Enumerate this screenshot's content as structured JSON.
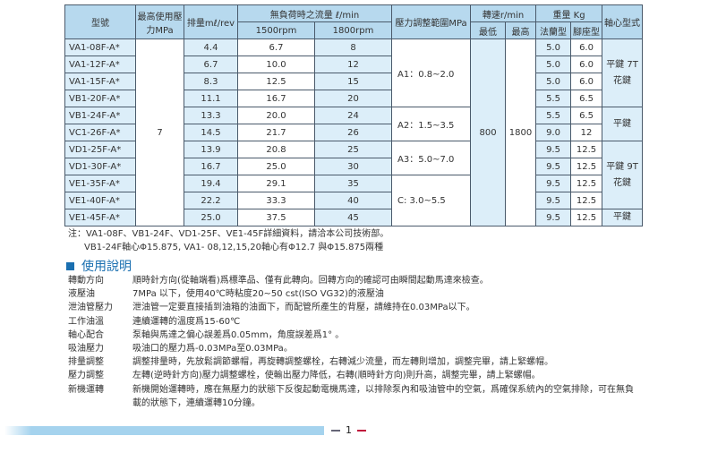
{
  "table": {
    "headers": {
      "model": "型號",
      "max_pressure": "最高使用壓力MPa",
      "displacement": "排量mℓ/rev",
      "flow": "無負荷時之流量 ℓ/min",
      "flow_1500": "1500rpm",
      "flow_1800": "1800rpm",
      "pressure_range": "壓力調整範圍MPa",
      "speed": "轉速r/min",
      "speed_min": "最低",
      "speed_max": "最高",
      "weight": "重量 Kg",
      "weight_flange": "法蘭型",
      "weight_foot": "腳座型",
      "shaft": "軸心型式"
    },
    "max_pressure": "7",
    "speed_min": "800",
    "speed_max": "1800",
    "pressure_ranges": [
      "A1：0.8~2.0",
      "A2：1.5~3.5",
      "A3：5.0~7.0",
      "C:   3.0~5.5"
    ],
    "shaft_types": [
      "平鍵 7T 花鍵",
      "平鍵",
      "平鍵 9T 花鍵",
      "平鍵"
    ],
    "rows": [
      [
        "VA1-08F-A*",
        "4.4",
        "6.7",
        "8",
        "5.0",
        "6.0"
      ],
      [
        "VA1-12F-A*",
        "6.7",
        "10.0",
        "12",
        "5.0",
        "6.0"
      ],
      [
        "VA1-15F-A*",
        "8.3",
        "12.5",
        "15",
        "5.0",
        "6.0"
      ],
      [
        "VB1-20F-A*",
        "11.1",
        "16.7",
        "20",
        "5.5",
        "6.5"
      ],
      [
        "VB1-24F-A*",
        "13.3",
        "20.0",
        "24",
        "5.5",
        "6.5"
      ],
      [
        "VC1-26F-A*",
        "14.5",
        "21.7",
        "26",
        "9.0",
        "12"
      ],
      [
        "VD1-25F-A*",
        "13.9",
        "20.8",
        "25",
        "9.5",
        "12.5"
      ],
      [
        "VD1-30F-A*",
        "16.7",
        "25.0",
        "30",
        "9.5",
        "12.5"
      ],
      [
        "VE1-35F-A*",
        "19.4",
        "29.1",
        "35",
        "9.5",
        "12.5"
      ],
      [
        "VE1-40F-A*",
        "22.2",
        "33.3",
        "40",
        "9.5",
        "12.5"
      ],
      [
        "VE1-45F-A*",
        "25.0",
        "37.5",
        "45",
        "9.5",
        "12.5"
      ]
    ]
  },
  "notes": [
    "注：VA1-08F、VB1-24F、VD1-25F、VE1-45F詳細資料，請洽本公司技術部。",
    "VB1-24F軸心Φ15.875, VA1- 08,12,15,20軸心有Φ12.7 與Φ15.875兩種"
  ],
  "section_title": "使用說明",
  "usage": [
    {
      "k": "轉動方向",
      "v": "順時針方向(從軸端看)爲標準品、僅有此轉向。回轉方向的確認可由瞬間起動馬達來檢查。"
    },
    {
      "k": "液壓油",
      "v": "7MPa 以下，使用40℃時粘度20~50 cst(ISO VG32)的液壓油"
    },
    {
      "k": "泄油管壓力",
      "v": "泄油管一定要直接插到油箱的油面下，而配管所產生的背壓，請維持在0.03MPa以下。"
    },
    {
      "k": "工作油溫",
      "v": "連續運轉的溫度爲15-60℃"
    },
    {
      "k": "軸心配合",
      "v": "泵軸與馬達之偏心誤差爲0.05mm，角度誤差爲1°  。"
    },
    {
      "k": "吸油壓力",
      "v": "吸油口的壓力爲-0.03MPa至0.03MPa。"
    },
    {
      "k": "排量調整",
      "v": "調整排量時，先放鬆調節螺帽，再旋轉調整螺栓，右轉減少流量，而左轉則增加，調整完畢，請上緊螺帽。"
    },
    {
      "k": "壓力調整",
      "v": "左轉(逆時針方向)壓力調整螺栓，使輸出壓力降低，右轉(順時針方向)則升高，調整完畢，請上緊螺帽。"
    },
    {
      "k": "新機運轉",
      "v": "新機開始運轉時，應在無壓力的狀態下反復起動電機馬達，以排除泵內和吸油管中的空氣，爲確保系統內的空氣排除，可在無負載的狀態下，連續運轉10分鐘。"
    }
  ],
  "page_number": "1"
}
